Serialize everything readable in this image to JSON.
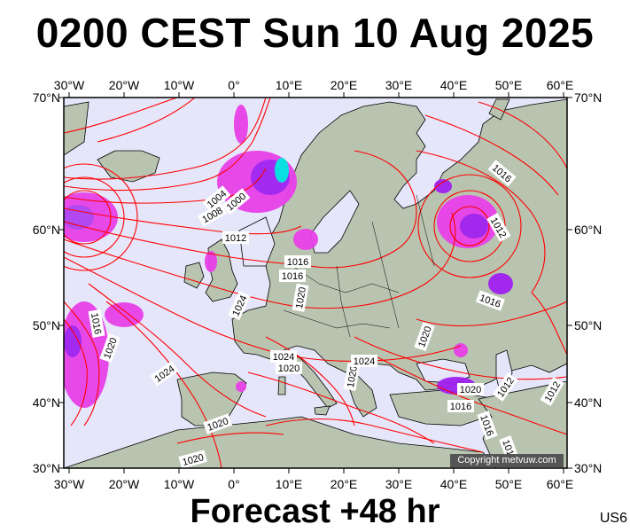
{
  "title": "0200 CEST Sun 10 Aug 2025",
  "subtitle": "Forecast +48 hr",
  "region_code": "US6",
  "copyright": "Copyright metvuw.com",
  "axes": {
    "longitude_ticks": [
      "30°W",
      "20°W",
      "10°W",
      "0°",
      "10°E",
      "20°E",
      "30°E",
      "40°E",
      "50°E",
      "60°E"
    ],
    "latitude_ticks": [
      "70°N",
      "60°N",
      "50°N",
      "40°N",
      "30°N"
    ]
  },
  "colors": {
    "ocean": "#e6e6fa",
    "land": "#b8c4b0",
    "isobar": "#ff0000",
    "coastline": "#000000",
    "precip_light": "#e840e8",
    "precip_medium": "#a020f0",
    "precip_heavy": "#00e0e0"
  },
  "isobar_labels": [
    "1000",
    "1004",
    "1008",
    "1012",
    "1016",
    "1020",
    "1024"
  ],
  "pressure_labels": [
    {
      "text": "1000"
    },
    {
      "text": "1004"
    },
    {
      "text": "1008"
    },
    {
      "text": "1012"
    },
    {
      "text": "1016"
    },
    {
      "text": "1020"
    },
    {
      "text": "1024"
    },
    {
      "text": "1016"
    },
    {
      "text": "1020"
    },
    {
      "text": "1024"
    },
    {
      "text": "1020"
    },
    {
      "text": "1024"
    },
    {
      "text": "1020"
    },
    {
      "text": "1016"
    },
    {
      "text": "1012"
    },
    {
      "text": "1016"
    },
    {
      "text": "1016"
    },
    {
      "text": "1012"
    },
    {
      "text": "1020"
    },
    {
      "text": "1020"
    },
    {
      "text": "1016"
    },
    {
      "text": "1016"
    },
    {
      "text": "1012"
    },
    {
      "text": "1020"
    },
    {
      "text": "1020"
    },
    {
      "text": "1024"
    },
    {
      "text": "1016"
    }
  ]
}
